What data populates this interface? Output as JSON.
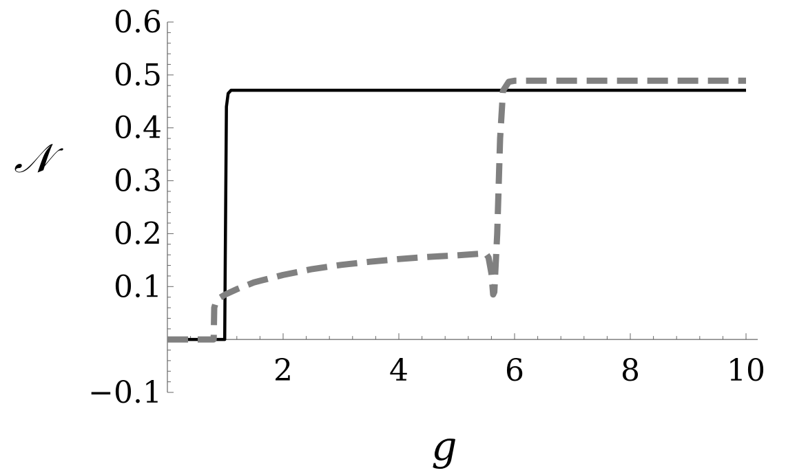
{
  "chart_data": {
    "type": "line",
    "title": "",
    "xlabel": "g",
    "ylabel": "𝒩",
    "xlim": [
      0,
      10
    ],
    "ylim": [
      -0.1,
      0.6
    ],
    "x_ticks": [
      {
        "value": 2,
        "label": "2"
      },
      {
        "value": 4,
        "label": "4"
      },
      {
        "value": 6,
        "label": "6"
      },
      {
        "value": 8,
        "label": "8"
      },
      {
        "value": 10,
        "label": "10"
      }
    ],
    "y_ticks": [
      {
        "value": -0.1,
        "label": "−0.1"
      },
      {
        "value": 0.1,
        "label": "0.1"
      },
      {
        "value": 0.2,
        "label": "0.2"
      },
      {
        "value": 0.3,
        "label": "0.3"
      },
      {
        "value": 0.4,
        "label": "0.4"
      },
      {
        "value": 0.5,
        "label": "0.5"
      },
      {
        "value": 0.6,
        "label": "0.6"
      }
    ],
    "grid": false,
    "legend": "none",
    "series": [
      {
        "style": "solid",
        "color": "#000000",
        "x": [
          0.0,
          0.5,
          0.99,
          1.0,
          1.02,
          1.05,
          1.1,
          2.0,
          4.0,
          6.0,
          8.0,
          10.0
        ],
        "y": [
          0.0,
          0.0,
          0.0,
          0.15,
          0.44,
          0.465,
          0.471,
          0.471,
          0.471,
          0.471,
          0.471,
          0.471
        ]
      },
      {
        "style": "dashed",
        "color": "#808080",
        "x": [
          0.0,
          0.5,
          0.8,
          0.81,
          0.85,
          1.0,
          1.2,
          1.5,
          2.0,
          2.5,
          3.0,
          3.5,
          4.0,
          4.5,
          5.0,
          5.4,
          5.5,
          5.55,
          5.6,
          5.63,
          5.65,
          5.7,
          5.75,
          5.8,
          5.9,
          6.0,
          7.0,
          8.0,
          10.0
        ],
        "y": [
          0.0,
          0.0,
          0.0,
          0.06,
          0.075,
          0.085,
          0.095,
          0.108,
          0.122,
          0.133,
          0.141,
          0.147,
          0.152,
          0.156,
          0.159,
          0.162,
          0.163,
          0.155,
          0.125,
          0.085,
          0.09,
          0.2,
          0.38,
          0.47,
          0.487,
          0.489,
          0.489,
          0.489,
          0.489
        ]
      }
    ]
  }
}
